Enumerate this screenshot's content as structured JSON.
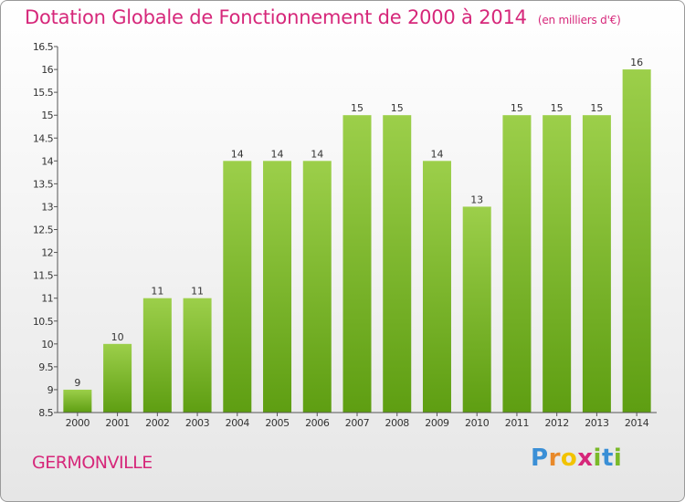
{
  "header": {
    "title": "Dotation Globale de Fonctionnement de 2000 à 2014",
    "subtitle": "(en milliers d'€)"
  },
  "footer": {
    "commune": "GERMONVILLE",
    "logo": [
      "P",
      "r",
      "o",
      "x",
      "i",
      "t",
      "i"
    ]
  },
  "colors": {
    "title": "#d6277a",
    "bar_top": "#9ccf4a",
    "bar_bottom": "#5e9e12",
    "axis": "#555555"
  },
  "chart_data": {
    "type": "bar",
    "title": "Dotation Globale de Fonctionnement de 2000 à 2014",
    "subtitle": "(en milliers d'€)",
    "categories": [
      "2000",
      "2001",
      "2002",
      "2003",
      "2004",
      "2005",
      "2006",
      "2007",
      "2008",
      "2009",
      "2010",
      "2011",
      "2012",
      "2013",
      "2014"
    ],
    "values": [
      9,
      10,
      11,
      11,
      14,
      14,
      14,
      15,
      15,
      14,
      13,
      15,
      15,
      15,
      16
    ],
    "value_labels": [
      "9",
      "10",
      "11",
      "11",
      "14",
      "14",
      "14",
      "15",
      "15",
      "14",
      "13",
      "15",
      "15",
      "15",
      "16"
    ],
    "ylim": [
      8.5,
      16.5
    ],
    "yticks": [
      "8.5",
      "9",
      "9.5",
      "10",
      "10.5",
      "11",
      "11.5",
      "12",
      "12.5",
      "13",
      "13.5",
      "14",
      "14.5",
      "15",
      "15.5",
      "16",
      "16.5"
    ],
    "ytick_values": [
      8.5,
      9,
      9.5,
      10,
      10.5,
      11,
      11.5,
      12,
      12.5,
      13,
      13.5,
      14,
      14.5,
      15,
      15.5,
      16,
      16.5
    ],
    "xlabel": "",
    "ylabel": "",
    "grid": false,
    "legend": "none"
  }
}
